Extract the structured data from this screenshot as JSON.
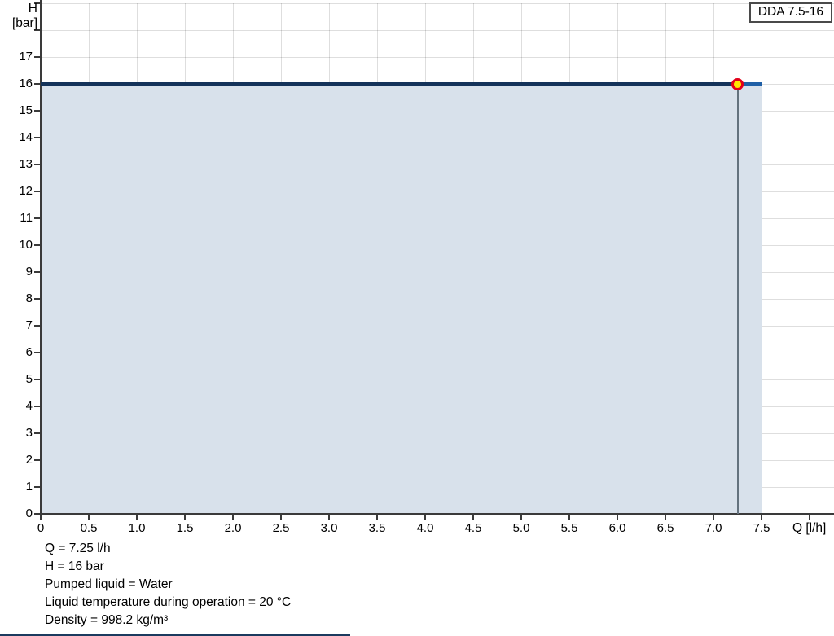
{
  "legend": {
    "label": "DDA 7.5-16"
  },
  "axes": {
    "y_title_line1": "H",
    "y_title_line2": "[bar]",
    "x_title": "Q [l/h]"
  },
  "chart_data": {
    "type": "area",
    "title": "DDA 7.5-16 pump performance curve (pressure vs. flow)",
    "xlabel": "Q [l/h]",
    "ylabel": "H [bar]",
    "xlim": [
      0,
      8.25
    ],
    "ylim": [
      0,
      19
    ],
    "grid": true,
    "legend_position": "top-right",
    "x_tick_labels": [
      "0",
      "0.5",
      "1.0",
      "1.5",
      "2.0",
      "2.5",
      "3.0",
      "3.5",
      "4.0",
      "4.5",
      "5.0",
      "5.5",
      "6.0",
      "6.5",
      "7.0",
      "7.5"
    ],
    "y_tick_labels": [
      "0",
      "1",
      "2",
      "3",
      "4",
      "5",
      "6",
      "7",
      "8",
      "9",
      "10",
      "11",
      "12",
      "13",
      "14",
      "15",
      "16",
      "17"
    ],
    "series": [
      {
        "name": "DDA 7.5-16",
        "x": [
          0,
          7.5
        ],
        "y": [
          16,
          16
        ]
      }
    ],
    "duty_point": {
      "q": 7.25,
      "h": 16
    },
    "colors": {
      "curve": "#14335a",
      "curve_beyond_duty": "#1f5fa6",
      "fill": "#d8e1eb",
      "marker_fill": "#ffe600",
      "marker_border": "#e2001a",
      "duty_line": "#64727e",
      "axis": "#3a3a3a",
      "bottom_rule": "#1b3a5e"
    }
  },
  "footer": {
    "lines": [
      "Q = 7.25 l/h",
      "H = 16 bar",
      "Pumped liquid = Water",
      "Liquid temperature during operation = 20 °C",
      "Density = 998.2 kg/m³"
    ]
  }
}
